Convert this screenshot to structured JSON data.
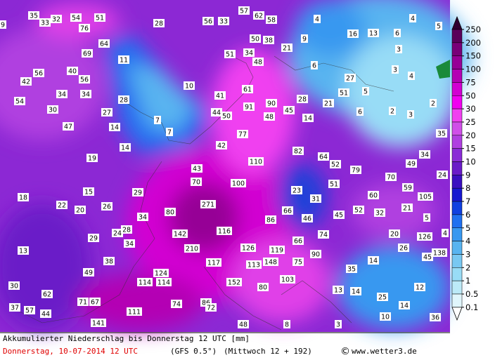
{
  "map": {
    "labels": [
      9,
      35,
      33,
      32,
      54,
      51,
      28,
      56,
      33,
      57,
      62,
      58,
      4,
      5,
      4,
      76,
      64,
      50,
      38,
      16,
      13,
      6,
      9,
      21,
      3,
      69,
      51,
      34,
      11,
      48,
      6,
      3,
      4,
      56,
      40,
      42,
      56,
      27,
      5,
      51,
      10,
      61,
      34,
      34,
      28,
      41,
      90,
      28,
      21,
      54,
      30,
      27,
      44,
      91,
      45,
      50,
      48,
      14,
      6,
      2,
      3,
      2,
      7,
      47,
      14,
      7,
      77,
      35,
      14,
      42,
      82,
      64,
      34,
      19,
      110,
      52,
      79,
      49,
      24,
      43,
      70,
      70,
      100,
      51,
      23,
      59,
      15,
      29,
      31,
      60,
      105,
      18,
      22,
      26,
      20,
      271,
      66,
      52,
      32,
      21,
      80,
      34,
      45,
      46,
      86,
      5,
      28,
      24,
      116,
      74,
      20,
      126,
      4,
      142,
      66,
      29,
      34,
      210,
      126,
      119,
      26,
      138,
      13,
      90,
      45,
      117,
      38,
      113,
      148,
      75,
      14,
      49,
      124,
      35,
      114,
      114,
      152,
      103,
      80,
      30,
      13,
      14,
      12,
      62,
      25,
      71,
      67,
      74,
      86,
      72,
      14,
      37,
      57,
      44,
      111,
      10,
      36,
      141,
      48,
      8,
      3
    ]
  },
  "legend": {
    "labels": [
      250,
      200,
      150,
      100,
      75,
      50,
      30,
      25,
      20,
      15,
      10,
      9,
      8,
      7,
      6,
      5,
      4,
      3,
      2,
      1,
      0.5,
      0.1
    ],
    "colors": [
      "#300030",
      "#5a005a",
      "#780078",
      "#960096",
      "#b400b4",
      "#d200d2",
      "#f000f0",
      "#f040f0",
      "#d050e8",
      "#b040e0",
      "#8a2cd6",
      "#6a1cc8",
      "#3a10c0",
      "#1818d0",
      "#1040e0",
      "#2070f0",
      "#3898f0",
      "#58b4f0",
      "#78c8f2",
      "#98dcf6",
      "#bceaf8",
      "#e0f6fc",
      "#ffffff"
    ]
  },
  "footer": {
    "title": "Akkumulierter Niederschlag bis Donnerstag 12 UTC [mm]",
    "date": "Donnerstag, 10-07-2014  12 UTC",
    "model": "(GFS 0.5°)",
    "run": "(Mittwoch 12 + 192)",
    "site": "www.wetter3.de",
    "copyright": "©"
  }
}
